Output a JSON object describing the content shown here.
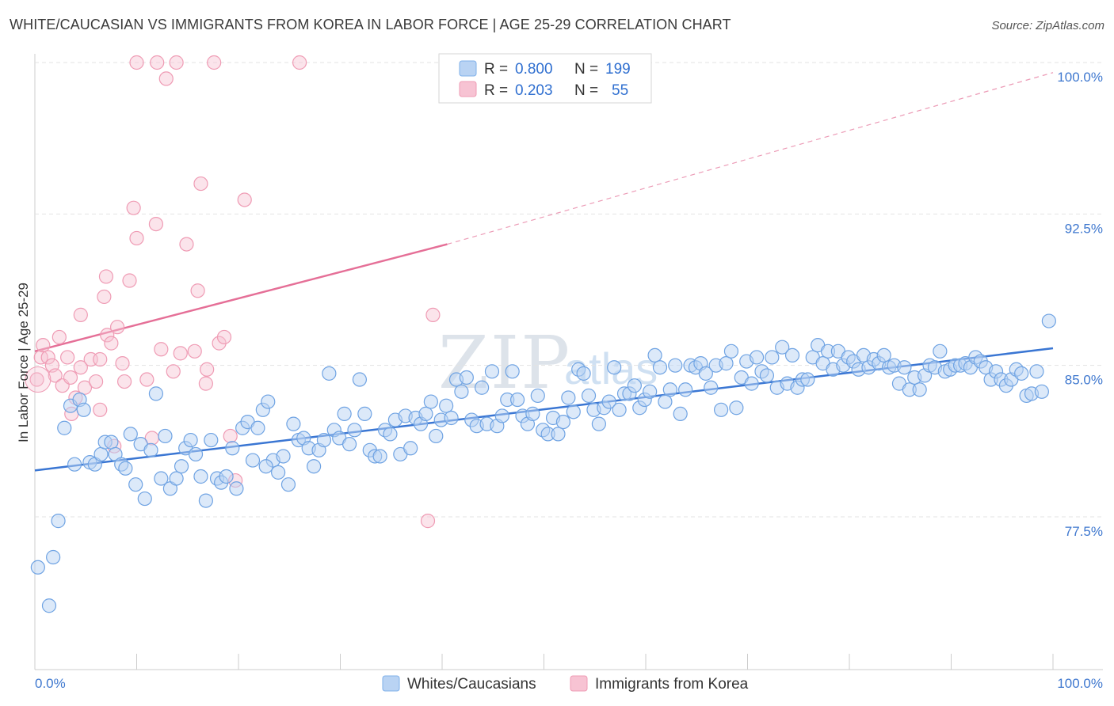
{
  "header": {
    "title": "WHITE/CAUCASIAN VS IMMIGRANTS FROM KOREA IN LABOR FORCE | AGE 25-29 CORRELATION CHART",
    "source": "Source: ZipAtlas.com"
  },
  "watermark": {
    "zip": "ZIP",
    "atlas": "atlas"
  },
  "chart_data": {
    "type": "scatter",
    "title": "WHITE/CAUCASIAN VS IMMIGRANTS FROM KOREA IN LABOR FORCE | AGE 25-29 CORRELATION CHART",
    "xlabel": "",
    "ylabel": "In Labor Force | Age 25-29",
    "xlim": [
      0,
      100
    ],
    "ylim": [
      70.5,
      100.5
    ],
    "x_tick_labels": {
      "left": "0.0%",
      "right": "100.0%"
    },
    "y_ticks": [
      {
        "value": 100.0,
        "label": "100.0%"
      },
      {
        "value": 92.5,
        "label": "92.5%"
      },
      {
        "value": 85.0,
        "label": "85.0%"
      },
      {
        "value": 77.5,
        "label": "77.5%"
      }
    ],
    "legend_position": "top-center",
    "legend": [
      {
        "name": "Whites/Caucasians",
        "r_label": "R =",
        "r_value": "0.800",
        "n_label": "N =",
        "n_value": "199",
        "color": "#7fb0ea",
        "fill": "#b9d3f3"
      },
      {
        "name": "Immigrants from Korea",
        "r_label": "R =",
        "r_value": "0.203",
        "n_label": "N =",
        "n_value": "55",
        "color": "#ef9bb4",
        "fill": "#f7c3d3"
      }
    ],
    "series": [
      {
        "name": "Whites/Caucasians",
        "color": "#3a76d3",
        "trend": {
          "x": [
            0,
            100
          ],
          "y": [
            79.8,
            85.85
          ],
          "style": "solid"
        },
        "points": [
          [
            0.3,
            75.0
          ],
          [
            1.4,
            73.1
          ],
          [
            1.8,
            75.5
          ],
          [
            2.3,
            77.3
          ],
          [
            2.9,
            81.9
          ],
          [
            3.5,
            83.0
          ],
          [
            3.9,
            80.1
          ],
          [
            4.4,
            83.3
          ],
          [
            4.8,
            82.8
          ],
          [
            5.4,
            80.2
          ],
          [
            5.9,
            80.1
          ],
          [
            6.5,
            80.6
          ],
          [
            6.9,
            81.2
          ],
          [
            7.5,
            81.2
          ],
          [
            7.9,
            80.6
          ],
          [
            8.5,
            80.1
          ],
          [
            8.9,
            79.9
          ],
          [
            9.4,
            81.6
          ],
          [
            9.9,
            79.1
          ],
          [
            10.4,
            81.1
          ],
          [
            10.8,
            78.4
          ],
          [
            11.4,
            80.8
          ],
          [
            11.9,
            83.6
          ],
          [
            12.4,
            79.4
          ],
          [
            12.8,
            81.5
          ],
          [
            13.3,
            78.9
          ],
          [
            13.9,
            79.4
          ],
          [
            14.4,
            80.0
          ],
          [
            14.8,
            80.9
          ],
          [
            15.3,
            81.3
          ],
          [
            15.8,
            80.6
          ],
          [
            16.3,
            79.5
          ],
          [
            16.8,
            78.3
          ],
          [
            17.3,
            81.3
          ],
          [
            17.9,
            79.4
          ],
          [
            18.3,
            79.2
          ],
          [
            18.8,
            79.5
          ],
          [
            19.4,
            80.9
          ],
          [
            19.8,
            78.9
          ],
          [
            20.4,
            81.9
          ],
          [
            20.9,
            82.2
          ],
          [
            21.4,
            80.3
          ],
          [
            21.9,
            81.9
          ],
          [
            22.4,
            82.8
          ],
          [
            22.9,
            83.2
          ],
          [
            23.4,
            80.3
          ],
          [
            23.9,
            79.7
          ],
          [
            24.4,
            80.5
          ],
          [
            24.9,
            79.1
          ],
          [
            25.4,
            82.1
          ],
          [
            25.9,
            81.3
          ],
          [
            26.4,
            81.4
          ],
          [
            26.9,
            80.9
          ],
          [
            27.4,
            80.0
          ],
          [
            27.9,
            80.8
          ],
          [
            28.4,
            81.3
          ],
          [
            28.9,
            84.6
          ],
          [
            29.4,
            81.8
          ],
          [
            29.9,
            81.4
          ],
          [
            30.4,
            82.6
          ],
          [
            30.9,
            81.1
          ],
          [
            31.4,
            81.8
          ],
          [
            31.9,
            84.3
          ],
          [
            32.4,
            82.6
          ],
          [
            32.9,
            80.8
          ],
          [
            33.4,
            80.5
          ],
          [
            33.9,
            80.5
          ],
          [
            34.4,
            81.8
          ],
          [
            34.9,
            81.6
          ],
          [
            35.4,
            82.3
          ],
          [
            35.9,
            80.6
          ],
          [
            36.4,
            82.5
          ],
          [
            36.9,
            80.9
          ],
          [
            37.4,
            82.4
          ],
          [
            37.9,
            82.1
          ],
          [
            38.4,
            82.6
          ],
          [
            38.9,
            83.2
          ],
          [
            39.4,
            81.5
          ],
          [
            39.9,
            82.3
          ],
          [
            40.4,
            83.0
          ],
          [
            40.9,
            82.4
          ],
          [
            41.4,
            84.3
          ],
          [
            41.9,
            83.7
          ],
          [
            42.4,
            84.4
          ],
          [
            42.9,
            82.3
          ],
          [
            43.4,
            82.0
          ],
          [
            43.9,
            83.9
          ],
          [
            44.4,
            82.1
          ],
          [
            44.9,
            84.7
          ],
          [
            45.4,
            82.0
          ],
          [
            45.9,
            82.5
          ],
          [
            46.4,
            83.3
          ],
          [
            46.9,
            84.7
          ],
          [
            47.4,
            83.3
          ],
          [
            47.9,
            82.5
          ],
          [
            48.4,
            82.1
          ],
          [
            48.9,
            82.6
          ],
          [
            49.4,
            83.5
          ],
          [
            49.9,
            81.8
          ],
          [
            50.4,
            81.6
          ],
          [
            50.9,
            82.4
          ],
          [
            51.4,
            81.6
          ],
          [
            51.9,
            82.2
          ],
          [
            52.4,
            83.4
          ],
          [
            52.9,
            82.7
          ],
          [
            53.4,
            84.8
          ],
          [
            53.9,
            84.6
          ],
          [
            54.4,
            83.5
          ],
          [
            54.9,
            82.8
          ],
          [
            55.4,
            82.1
          ],
          [
            55.9,
            82.9
          ],
          [
            56.4,
            83.2
          ],
          [
            56.9,
            84.9
          ],
          [
            57.4,
            82.8
          ],
          [
            57.9,
            83.6
          ],
          [
            58.4,
            83.6
          ],
          [
            58.9,
            84.0
          ],
          [
            59.4,
            82.9
          ],
          [
            59.9,
            83.3
          ],
          [
            60.4,
            83.7
          ],
          [
            60.9,
            85.5
          ],
          [
            61.4,
            84.9
          ],
          [
            61.9,
            83.2
          ],
          [
            62.4,
            83.8
          ],
          [
            62.9,
            85.0
          ],
          [
            63.4,
            82.6
          ],
          [
            63.9,
            83.8
          ],
          [
            64.4,
            85.0
          ],
          [
            64.9,
            84.9
          ],
          [
            65.4,
            85.1
          ],
          [
            65.9,
            84.6
          ],
          [
            66.4,
            83.9
          ],
          [
            66.9,
            85.0
          ],
          [
            67.4,
            82.8
          ],
          [
            67.9,
            85.1
          ],
          [
            68.4,
            85.7
          ],
          [
            68.9,
            82.9
          ],
          [
            69.4,
            84.4
          ],
          [
            69.9,
            85.2
          ],
          [
            70.4,
            84.1
          ],
          [
            70.9,
            85.4
          ],
          [
            71.4,
            84.7
          ],
          [
            71.9,
            84.5
          ],
          [
            72.4,
            85.4
          ],
          [
            72.9,
            83.9
          ],
          [
            73.4,
            85.9
          ],
          [
            73.9,
            84.1
          ],
          [
            74.4,
            85.5
          ],
          [
            74.9,
            83.9
          ],
          [
            75.4,
            84.3
          ],
          [
            75.9,
            84.3
          ],
          [
            76.4,
            85.4
          ],
          [
            76.9,
            86.0
          ],
          [
            77.4,
            85.1
          ],
          [
            77.9,
            85.7
          ],
          [
            78.4,
            84.8
          ],
          [
            78.9,
            85.7
          ],
          [
            79.4,
            85.0
          ],
          [
            79.9,
            85.4
          ],
          [
            80.4,
            85.2
          ],
          [
            80.9,
            84.8
          ],
          [
            81.4,
            85.5
          ],
          [
            81.9,
            84.9
          ],
          [
            82.4,
            85.3
          ],
          [
            82.9,
            85.1
          ],
          [
            83.4,
            85.5
          ],
          [
            83.9,
            84.9
          ],
          [
            84.4,
            85.0
          ],
          [
            84.9,
            84.1
          ],
          [
            85.4,
            84.9
          ],
          [
            85.9,
            83.8
          ],
          [
            86.4,
            84.4
          ],
          [
            86.9,
            83.8
          ],
          [
            87.4,
            84.5
          ],
          [
            87.9,
            85.0
          ],
          [
            88.4,
            84.9
          ],
          [
            88.9,
            85.7
          ],
          [
            89.4,
            84.7
          ],
          [
            89.9,
            84.8
          ],
          [
            90.4,
            85.0
          ],
          [
            90.9,
            85.0
          ],
          [
            91.4,
            85.1
          ],
          [
            91.9,
            84.9
          ],
          [
            92.4,
            85.4
          ],
          [
            92.9,
            85.2
          ],
          [
            93.4,
            84.9
          ],
          [
            93.9,
            84.3
          ],
          [
            94.4,
            84.7
          ],
          [
            94.9,
            84.3
          ],
          [
            95.4,
            84.0
          ],
          [
            95.9,
            84.3
          ],
          [
            96.4,
            84.8
          ],
          [
            96.9,
            84.6
          ],
          [
            97.4,
            83.5
          ],
          [
            97.9,
            83.6
          ],
          [
            98.4,
            84.7
          ],
          [
            98.9,
            83.7
          ],
          [
            99.6,
            87.2
          ],
          [
            22.7,
            80.0
          ]
        ]
      },
      {
        "name": "Immigrants from Korea",
        "color": "#e56f97",
        "trend": {
          "x": [
            0,
            40.5,
            100
          ],
          "y": [
            85.7,
            91.0,
            99.5
          ],
          "style_solid_until": 40.5
        },
        "points": [
          [
            0.2,
            84.3
          ],
          [
            0.6,
            85.4
          ],
          [
            0.8,
            86.0
          ],
          [
            1.3,
            85.4
          ],
          [
            1.7,
            85.0
          ],
          [
            2.0,
            84.5
          ],
          [
            2.4,
            86.4
          ],
          [
            2.7,
            84.0
          ],
          [
            3.2,
            85.4
          ],
          [
            3.5,
            84.4
          ],
          [
            4.0,
            83.4
          ],
          [
            4.5,
            84.9
          ],
          [
            4.9,
            83.9
          ],
          [
            5.5,
            85.3
          ],
          [
            6.0,
            84.2
          ],
          [
            6.4,
            85.3
          ],
          [
            7.1,
            86.5
          ],
          [
            7.5,
            86.1
          ],
          [
            8.1,
            86.9
          ],
          [
            8.6,
            85.1
          ],
          [
            8.8,
            84.2
          ],
          [
            9.7,
            92.8
          ],
          [
            10.0,
            91.3
          ],
          [
            11.0,
            84.3
          ],
          [
            11.5,
            81.4
          ],
          [
            11.9,
            92.0
          ],
          [
            12.4,
            85.8
          ],
          [
            12.9,
            99.2
          ],
          [
            13.6,
            84.7
          ],
          [
            13.9,
            100.0
          ],
          [
            14.3,
            85.6
          ],
          [
            14.9,
            91.0
          ],
          [
            15.7,
            85.7
          ],
          [
            16.0,
            88.7
          ],
          [
            16.3,
            94.0
          ],
          [
            16.8,
            84.1
          ],
          [
            16.9,
            84.8
          ],
          [
            17.6,
            100.0
          ],
          [
            18.1,
            86.1
          ],
          [
            18.6,
            86.4
          ],
          [
            19.2,
            81.5
          ],
          [
            19.7,
            79.3
          ],
          [
            20.6,
            93.2
          ],
          [
            9.3,
            89.2
          ],
          [
            10.0,
            100.0
          ],
          [
            12.0,
            100.0
          ],
          [
            26.0,
            100.0
          ],
          [
            7.8,
            81.0
          ],
          [
            6.4,
            82.8
          ],
          [
            6.8,
            88.4
          ],
          [
            4.5,
            87.5
          ],
          [
            3.6,
            82.6
          ],
          [
            7.0,
            89.4
          ],
          [
            38.6,
            77.3
          ],
          [
            39.1,
            87.5
          ]
        ]
      }
    ]
  },
  "axis": {
    "ylabel": "In Labor Force | Age 25-29"
  }
}
